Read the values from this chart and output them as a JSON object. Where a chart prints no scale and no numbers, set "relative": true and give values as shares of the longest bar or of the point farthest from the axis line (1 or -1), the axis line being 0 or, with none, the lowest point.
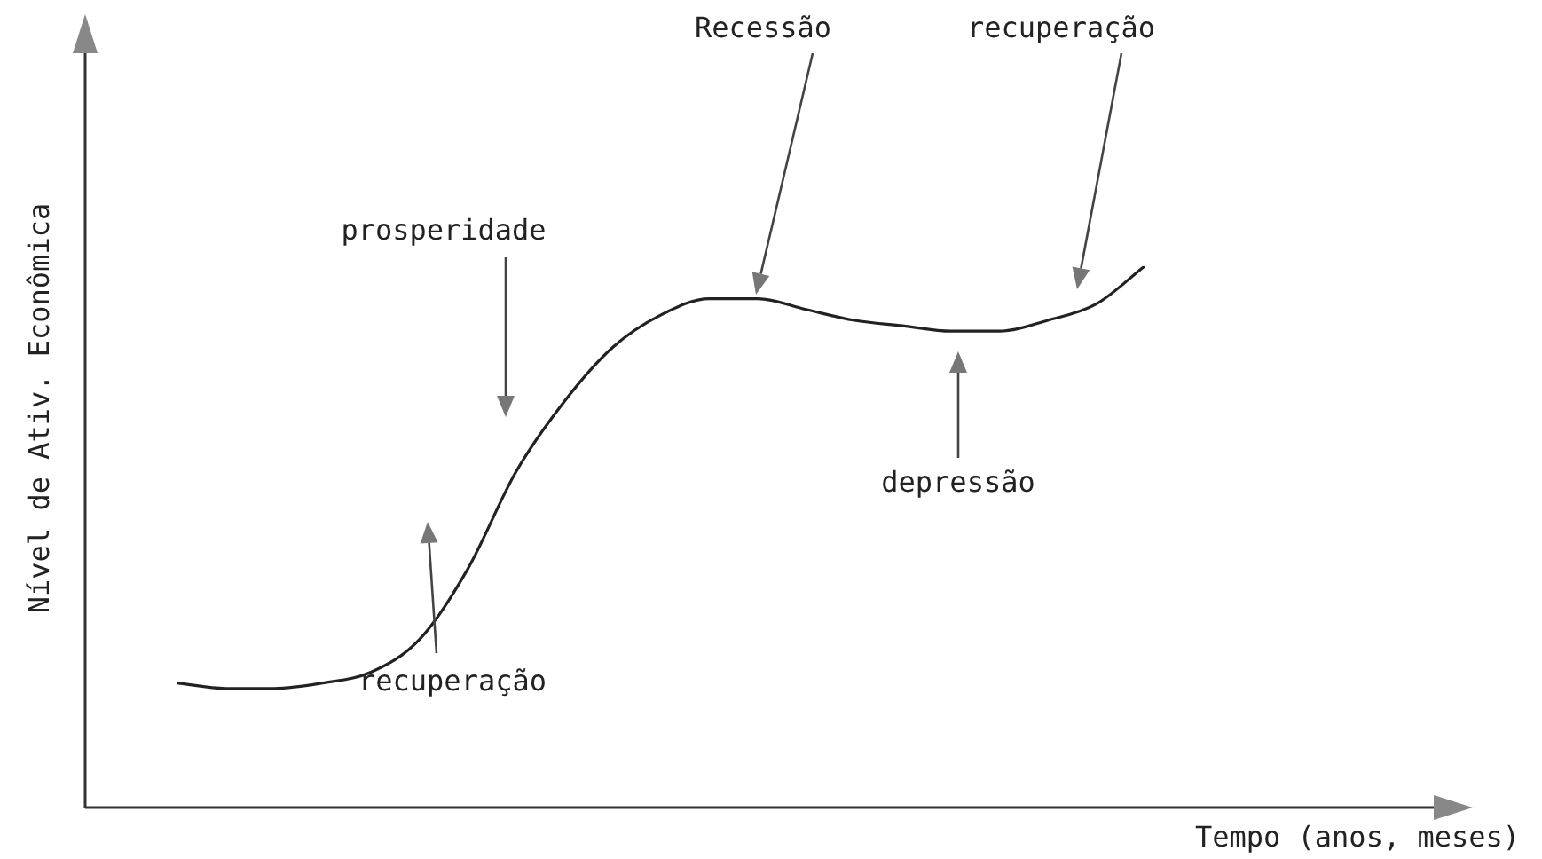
{
  "chart_data": {
    "type": "line",
    "relative": true,
    "xlabel": "Tempo (anos, meses)",
    "ylabel": "Nível de Ativ. Econômica",
    "categories": [
      null,
      null,
      null,
      null,
      null,
      null,
      null,
      null,
      null,
      null,
      null,
      null,
      null,
      null,
      null,
      null,
      null,
      null,
      null,
      null,
      null
    ],
    "series": [
      {
        "color": "#222222",
        "values": [
          0.23,
          0.22,
          0.22,
          0.23,
          0.25,
          0.31,
          0.44,
          0.62,
          0.75,
          0.85,
          0.91,
          0.94,
          0.94,
          0.92,
          0.9,
          0.89,
          0.88,
          0.88,
          0.9,
          0.93,
          1
        ]
      }
    ],
    "annotations": [
      "prosperidade",
      "Recessão",
      "recuperação",
      "depressão",
      "recuperação"
    ],
    "legend": false,
    "grid": false,
    "tick_labels": false,
    "marker": "none",
    "line_style": "solid"
  }
}
